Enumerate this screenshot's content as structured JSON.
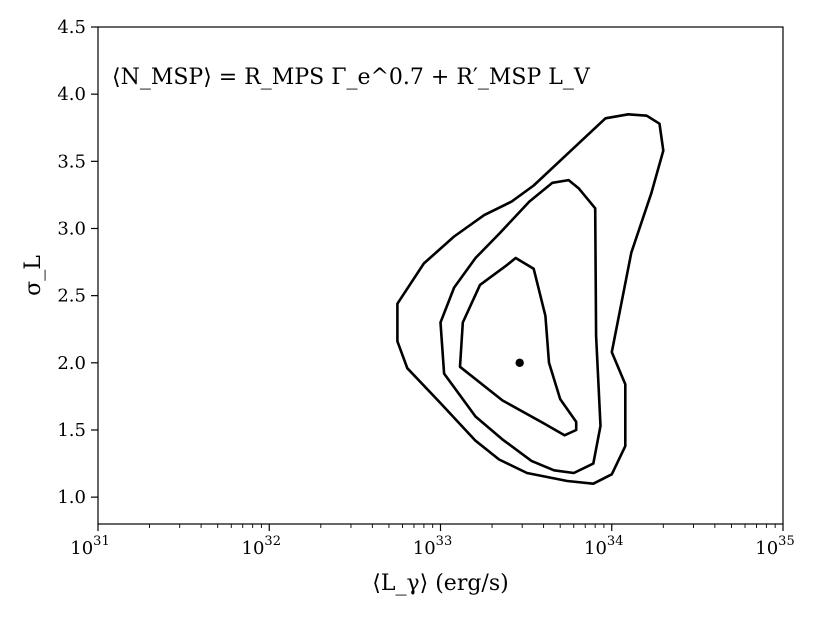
{
  "chart_data": {
    "type": "contour",
    "title": "",
    "annotation": "⟨N_MSP⟩ = R_MPS Γ_e^0.7 + R′_MSP L_V",
    "xlabel": "⟨L_γ⟩ (erg/s)",
    "ylabel": "σ_L",
    "xscale": "log",
    "xlim": [
      1e+31,
      1e+35
    ],
    "ylim": [
      0.8,
      4.5
    ],
    "x_ticks": [
      {
        "value": 1e+31,
        "label": "10^31"
      },
      {
        "value": 1e+32,
        "label": "10^32"
      },
      {
        "value": 1e+33,
        "label": "10^33"
      },
      {
        "value": 1e+34,
        "label": "10^34"
      },
      {
        "value": 1e+35,
        "label": "10^35"
      }
    ],
    "y_ticks": [
      1.0,
      1.5,
      2.0,
      2.5,
      3.0,
      3.5,
      4.0,
      4.5
    ],
    "y_tick_labels": [
      "1.0",
      "1.5",
      "2.0",
      "2.5",
      "3.0",
      "3.5",
      "4.0",
      "4.5"
    ],
    "grid": false,
    "best_fit": {
      "x": 2.9e+33,
      "y": 2.0
    },
    "contours": [
      {
        "level": "inner",
        "points": [
          [
            2.4e+33,
            2.72
          ],
          [
            2.75e+33,
            2.78
          ],
          [
            3.5e+33,
            2.7
          ],
          [
            4.1e+33,
            2.35
          ],
          [
            4.3e+33,
            2.0
          ],
          [
            5e+33,
            1.73
          ],
          [
            6.2e+33,
            1.56
          ],
          [
            6.2e+33,
            1.5
          ],
          [
            5.3e+33,
            1.46
          ],
          [
            4e+33,
            1.55
          ],
          [
            2.3e+33,
            1.72
          ],
          [
            1.3e+33,
            1.97
          ],
          [
            1.35e+33,
            2.3
          ],
          [
            1.7e+33,
            2.58
          ],
          [
            2.4e+33,
            2.72
          ]
        ]
      },
      {
        "level": "middle",
        "points": [
          [
            2.2e+33,
            2.96
          ],
          [
            3.3e+33,
            3.2
          ],
          [
            4.5e+33,
            3.34
          ],
          [
            5.6e+33,
            3.36
          ],
          [
            6.4e+33,
            3.3
          ],
          [
            8e+33,
            3.15
          ],
          [
            8.1e+33,
            2.2
          ],
          [
            8.6e+33,
            1.53
          ],
          [
            7.8e+33,
            1.25
          ],
          [
            6e+33,
            1.18
          ],
          [
            4.6e+33,
            1.2
          ],
          [
            3.4e+33,
            1.27
          ],
          [
            2.3e+33,
            1.43
          ],
          [
            1.6e+33,
            1.6
          ],
          [
            1.05e+33,
            1.92
          ],
          [
            1e+33,
            2.3
          ],
          [
            1.2e+33,
            2.56
          ],
          [
            1.6e+33,
            2.78
          ],
          [
            2.2e+33,
            2.96
          ]
        ]
      },
      {
        "level": "outer",
        "points": [
          [
            3.5e+33,
            3.32
          ],
          [
            6e+33,
            3.6
          ],
          [
            9.2e+33,
            3.82
          ],
          [
            1.25e+34,
            3.85
          ],
          [
            1.6e+34,
            3.84
          ],
          [
            1.9e+34,
            3.78
          ],
          [
            2e+34,
            3.58
          ],
          [
            1.7e+34,
            3.26
          ],
          [
            1.3e+34,
            2.82
          ],
          [
            1e+34,
            2.08
          ],
          [
            1.2e+34,
            1.84
          ],
          [
            1.2e+34,
            1.38
          ],
          [
            1e+34,
            1.17
          ],
          [
            7.8e+33,
            1.1
          ],
          [
            5.5e+33,
            1.12
          ],
          [
            3.2e+33,
            1.18
          ],
          [
            2.2e+33,
            1.28
          ],
          [
            1.6e+33,
            1.42
          ],
          [
            1e+33,
            1.7
          ],
          [
            6.4e+32,
            1.96
          ],
          [
            5.6e+32,
            2.16
          ],
          [
            5.6e+32,
            2.44
          ],
          [
            8e+32,
            2.74
          ],
          [
            1.2e+33,
            2.94
          ],
          [
            1.8e+33,
            3.1
          ],
          [
            2.6e+33,
            3.2
          ],
          [
            3.5e+33,
            3.32
          ]
        ]
      }
    ]
  }
}
